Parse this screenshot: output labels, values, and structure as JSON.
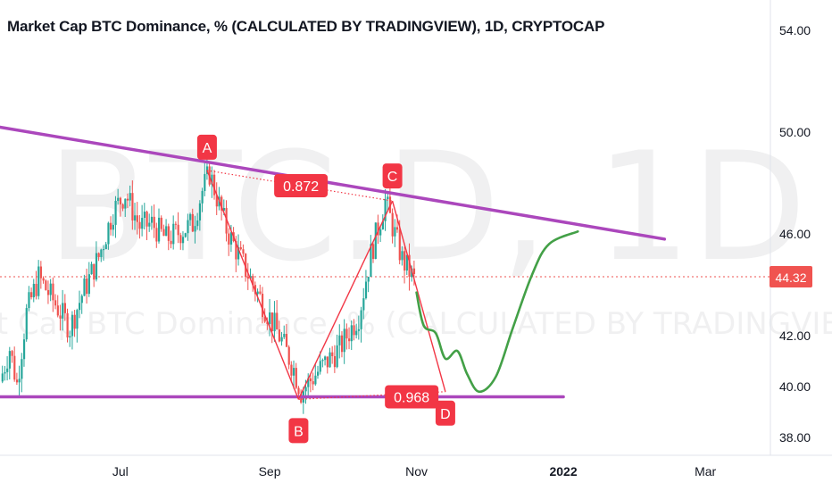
{
  "chart_data": {
    "type": "candlestick",
    "title": "Market Cap BTC Dominance, % (CALCULATED BY TRADINGVIEW), 1D, CRYPTOCAP",
    "watermark_symbol": "BTC.D, 1D",
    "watermark_name": "Market Cap BTC Dominance, % (CALCULATED BY TRADINGVIEW)",
    "ylim": [
      37.3,
      55.2
    ],
    "xlim": [
      "2021-05-12",
      "2022-03-28"
    ],
    "y_ticks": [
      54,
      50,
      46,
      42,
      40,
      38
    ],
    "y_tick_labels": [
      "54.00",
      "50.00",
      "46.00",
      "42.00",
      "40.00",
      "38.00"
    ],
    "x_ticks": [
      {
        "date": "2021-07-01",
        "label": "Jul"
      },
      {
        "date": "2021-09-01",
        "label": "Sep"
      },
      {
        "date": "2021-11-01",
        "label": "Nov"
      },
      {
        "date": "2022-01-01",
        "label": "2022"
      },
      {
        "date": "2022-03-01",
        "label": "Mar"
      }
    ],
    "last_price": 44.32,
    "last_price_label": "44.32",
    "candle_anchors": [
      [
        "2021-05-12",
        40.2
      ],
      [
        "2021-05-16",
        41.5
      ],
      [
        "2021-05-19",
        40.1
      ],
      [
        "2021-05-23",
        42.9
      ],
      [
        "2021-05-28",
        44.3
      ],
      [
        "2021-06-03",
        43.4
      ],
      [
        "2021-06-10",
        42.3
      ],
      [
        "2021-06-15",
        43.6
      ],
      [
        "2021-06-22",
        45.1
      ],
      [
        "2021-06-28",
        46.9
      ],
      [
        "2021-07-03",
        47.6
      ],
      [
        "2021-07-09",
        46.3
      ],
      [
        "2021-07-14",
        46.4
      ],
      [
        "2021-07-20",
        45.8
      ],
      [
        "2021-07-26",
        46.1
      ],
      [
        "2021-07-31",
        46.4
      ],
      [
        "2021-08-04",
        47.7
      ],
      [
        "2021-08-07",
        48.4
      ],
      [
        "2021-08-14",
        46.2
      ],
      [
        "2021-08-22",
        44.6
      ],
      [
        "2021-08-30",
        43.1
      ],
      [
        "2021-09-06",
        41.8
      ],
      [
        "2021-09-11",
        40.7
      ],
      [
        "2021-09-14",
        39.8
      ],
      [
        "2021-09-22",
        40.7
      ],
      [
        "2021-09-30",
        41.5
      ],
      [
        "2021-10-08",
        42.8
      ],
      [
        "2021-10-13",
        45.2
      ],
      [
        "2021-10-19",
        47.3
      ],
      [
        "2021-10-26",
        45.0
      ],
      [
        "2021-10-31",
        44.2
      ]
    ],
    "trendlines": [
      {
        "name": "upper-trendline",
        "color": "#ab47bc",
        "points": [
          [
            "2021-05-12",
            50.2
          ],
          [
            "2022-02-12",
            45.8
          ]
        ]
      },
      {
        "name": "lower-support",
        "color": "#ab47bc",
        "points": [
          [
            "2021-05-12",
            39.6
          ],
          [
            "2022-01-01",
            39.6
          ]
        ]
      }
    ],
    "xabcd_pattern": {
      "color": "#f23645",
      "points": [
        {
          "label": "A",
          "date": "2021-08-06",
          "value": 48.5
        },
        {
          "label": "B",
          "date": "2021-09-13",
          "value": 39.5
        },
        {
          "label": "C",
          "date": "2021-10-22",
          "value": 47.3
        },
        {
          "label": "D",
          "date": "2021-11-13",
          "value": 39.8
        }
      ],
      "ratios": [
        {
          "label": "0.872",
          "date": "2021-09-14",
          "value": 47.9
        },
        {
          "label": "0.968",
          "date": "2021-10-30",
          "value": 39.6
        }
      ]
    },
    "projection": {
      "color": "#43a047",
      "points": [
        [
          "2021-11-01",
          43.7
        ],
        [
          "2021-11-04",
          42.4
        ],
        [
          "2021-11-09",
          42.1
        ],
        [
          "2021-11-13",
          41.1
        ],
        [
          "2021-11-18",
          41.4
        ],
        [
          "2021-11-22",
          40.5
        ],
        [
          "2021-11-27",
          39.8
        ],
        [
          "2021-12-04",
          40.4
        ],
        [
          "2021-12-11",
          42.3
        ],
        [
          "2021-12-19",
          44.4
        ],
        [
          "2021-12-26",
          45.6
        ],
        [
          "2022-01-07",
          46.1
        ]
      ]
    }
  }
}
